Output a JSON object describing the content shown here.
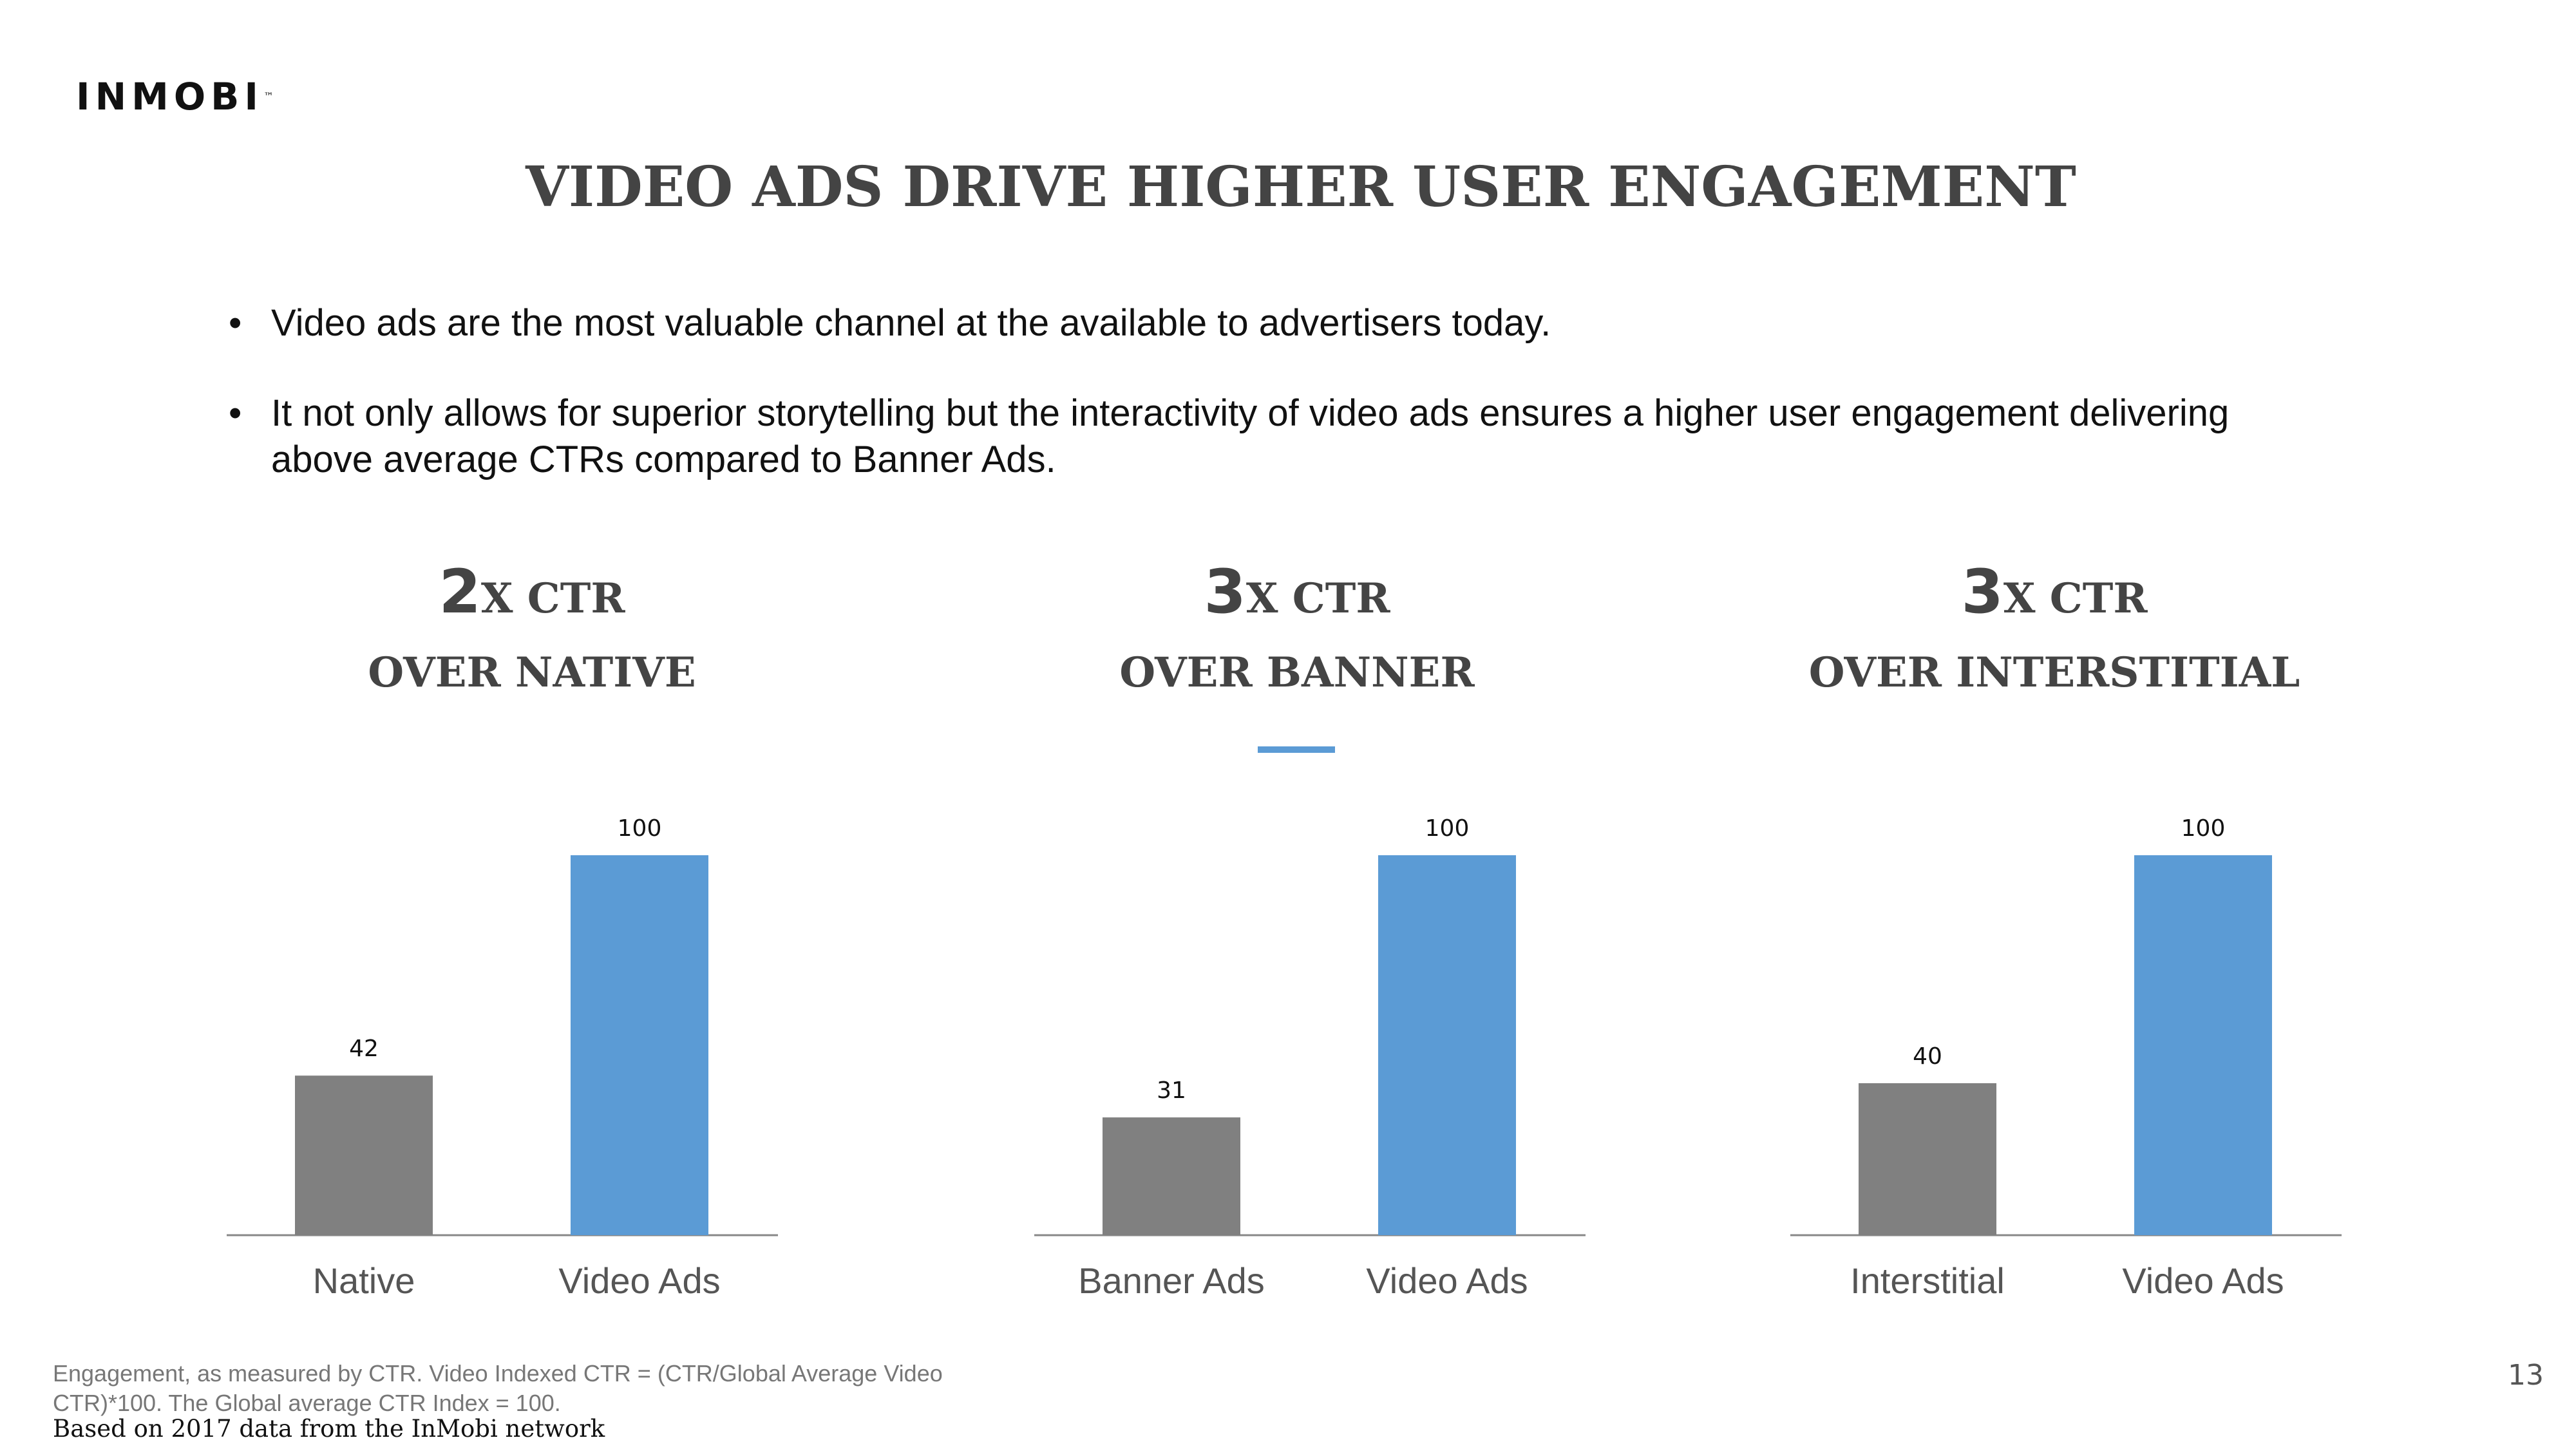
{
  "logo": {
    "text": "INMOBI",
    "tm": "™"
  },
  "title": "VIDEO ADS DRIVE HIGHER USER ENGAGEMENT",
  "bullets": [
    {
      "marker": "•",
      "text": "Video ads are the most valuable channel at the available to advertisers today."
    },
    {
      "marker": "•",
      "text": "It not only allows for superior storytelling but the interactivity of video ads ensures a higher user engagement delivering\nabove average CTRs compared to Banner Ads."
    }
  ],
  "panels": [
    {
      "multiplier": "2",
      "suffix": "X CTR",
      "subtitle": "OVER NATIVE"
    },
    {
      "multiplier": "3",
      "suffix": "X CTR",
      "subtitle": "OVER BANNER"
    },
    {
      "multiplier": "3",
      "suffix": "X CTR",
      "subtitle": "OVER INTERSTITIAL"
    }
  ],
  "chart_data": [
    {
      "type": "bar",
      "title": "OVER NATIVE",
      "categories": [
        "Native",
        "Video Ads"
      ],
      "values": [
        42,
        100
      ],
      "data_labels": [
        "42",
        "100"
      ],
      "colors": [
        "#808080",
        "#5b9bd5"
      ],
      "ylim": [
        0,
        100
      ],
      "grid": false,
      "legend": "none"
    },
    {
      "type": "bar",
      "title": "OVER BANNER",
      "categories": [
        "Banner Ads",
        "Video Ads"
      ],
      "values": [
        31,
        100
      ],
      "data_labels": [
        "31",
        "100"
      ],
      "colors": [
        "#808080",
        "#5b9bd5"
      ],
      "ylim": [
        0,
        100
      ],
      "grid": false,
      "legend": "none"
    },
    {
      "type": "bar",
      "title": "OVER INTERSTITIAL",
      "categories": [
        "Interstitial",
        "Video Ads"
      ],
      "values": [
        40,
        100
      ],
      "data_labels": [
        "40",
        "100"
      ],
      "colors": [
        "#808080",
        "#5b9bd5"
      ],
      "ylim": [
        0,
        100
      ],
      "grid": false,
      "legend": "none"
    }
  ],
  "footnote": "Engagement, as measured by CTR. Video Indexed CTR = (CTR/Global Average Video CTR)*100. The Global average CTR Index = 100.",
  "source": "Based on 2017 data from the InMobi network",
  "page_number": "13",
  "colors": {
    "accent": "#5b9bd5",
    "neutral_bar": "#808080",
    "heading": "#444444"
  }
}
